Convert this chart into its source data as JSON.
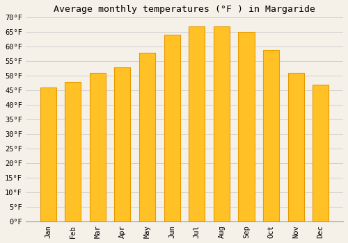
{
  "title": "Average monthly temperatures (°F ) in Margaride",
  "months": [
    "Jan",
    "Feb",
    "Mar",
    "Apr",
    "May",
    "Jun",
    "Jul",
    "Aug",
    "Sep",
    "Oct",
    "Nov",
    "Dec"
  ],
  "values": [
    46,
    48,
    51,
    53,
    58,
    64,
    67,
    67,
    65,
    59,
    51,
    47
  ],
  "bar_color_face": "#FFC125",
  "bar_color_edge": "#E89B00",
  "ylim": [
    0,
    70
  ],
  "ytick_step": 5,
  "background_color": "#F5F0E8",
  "plot_bg_color": "#F5F0E8",
  "grid_color": "#CCCCCC",
  "title_fontsize": 9.5,
  "tick_fontsize": 7.5,
  "title_font": "monospace",
  "tick_font": "monospace"
}
